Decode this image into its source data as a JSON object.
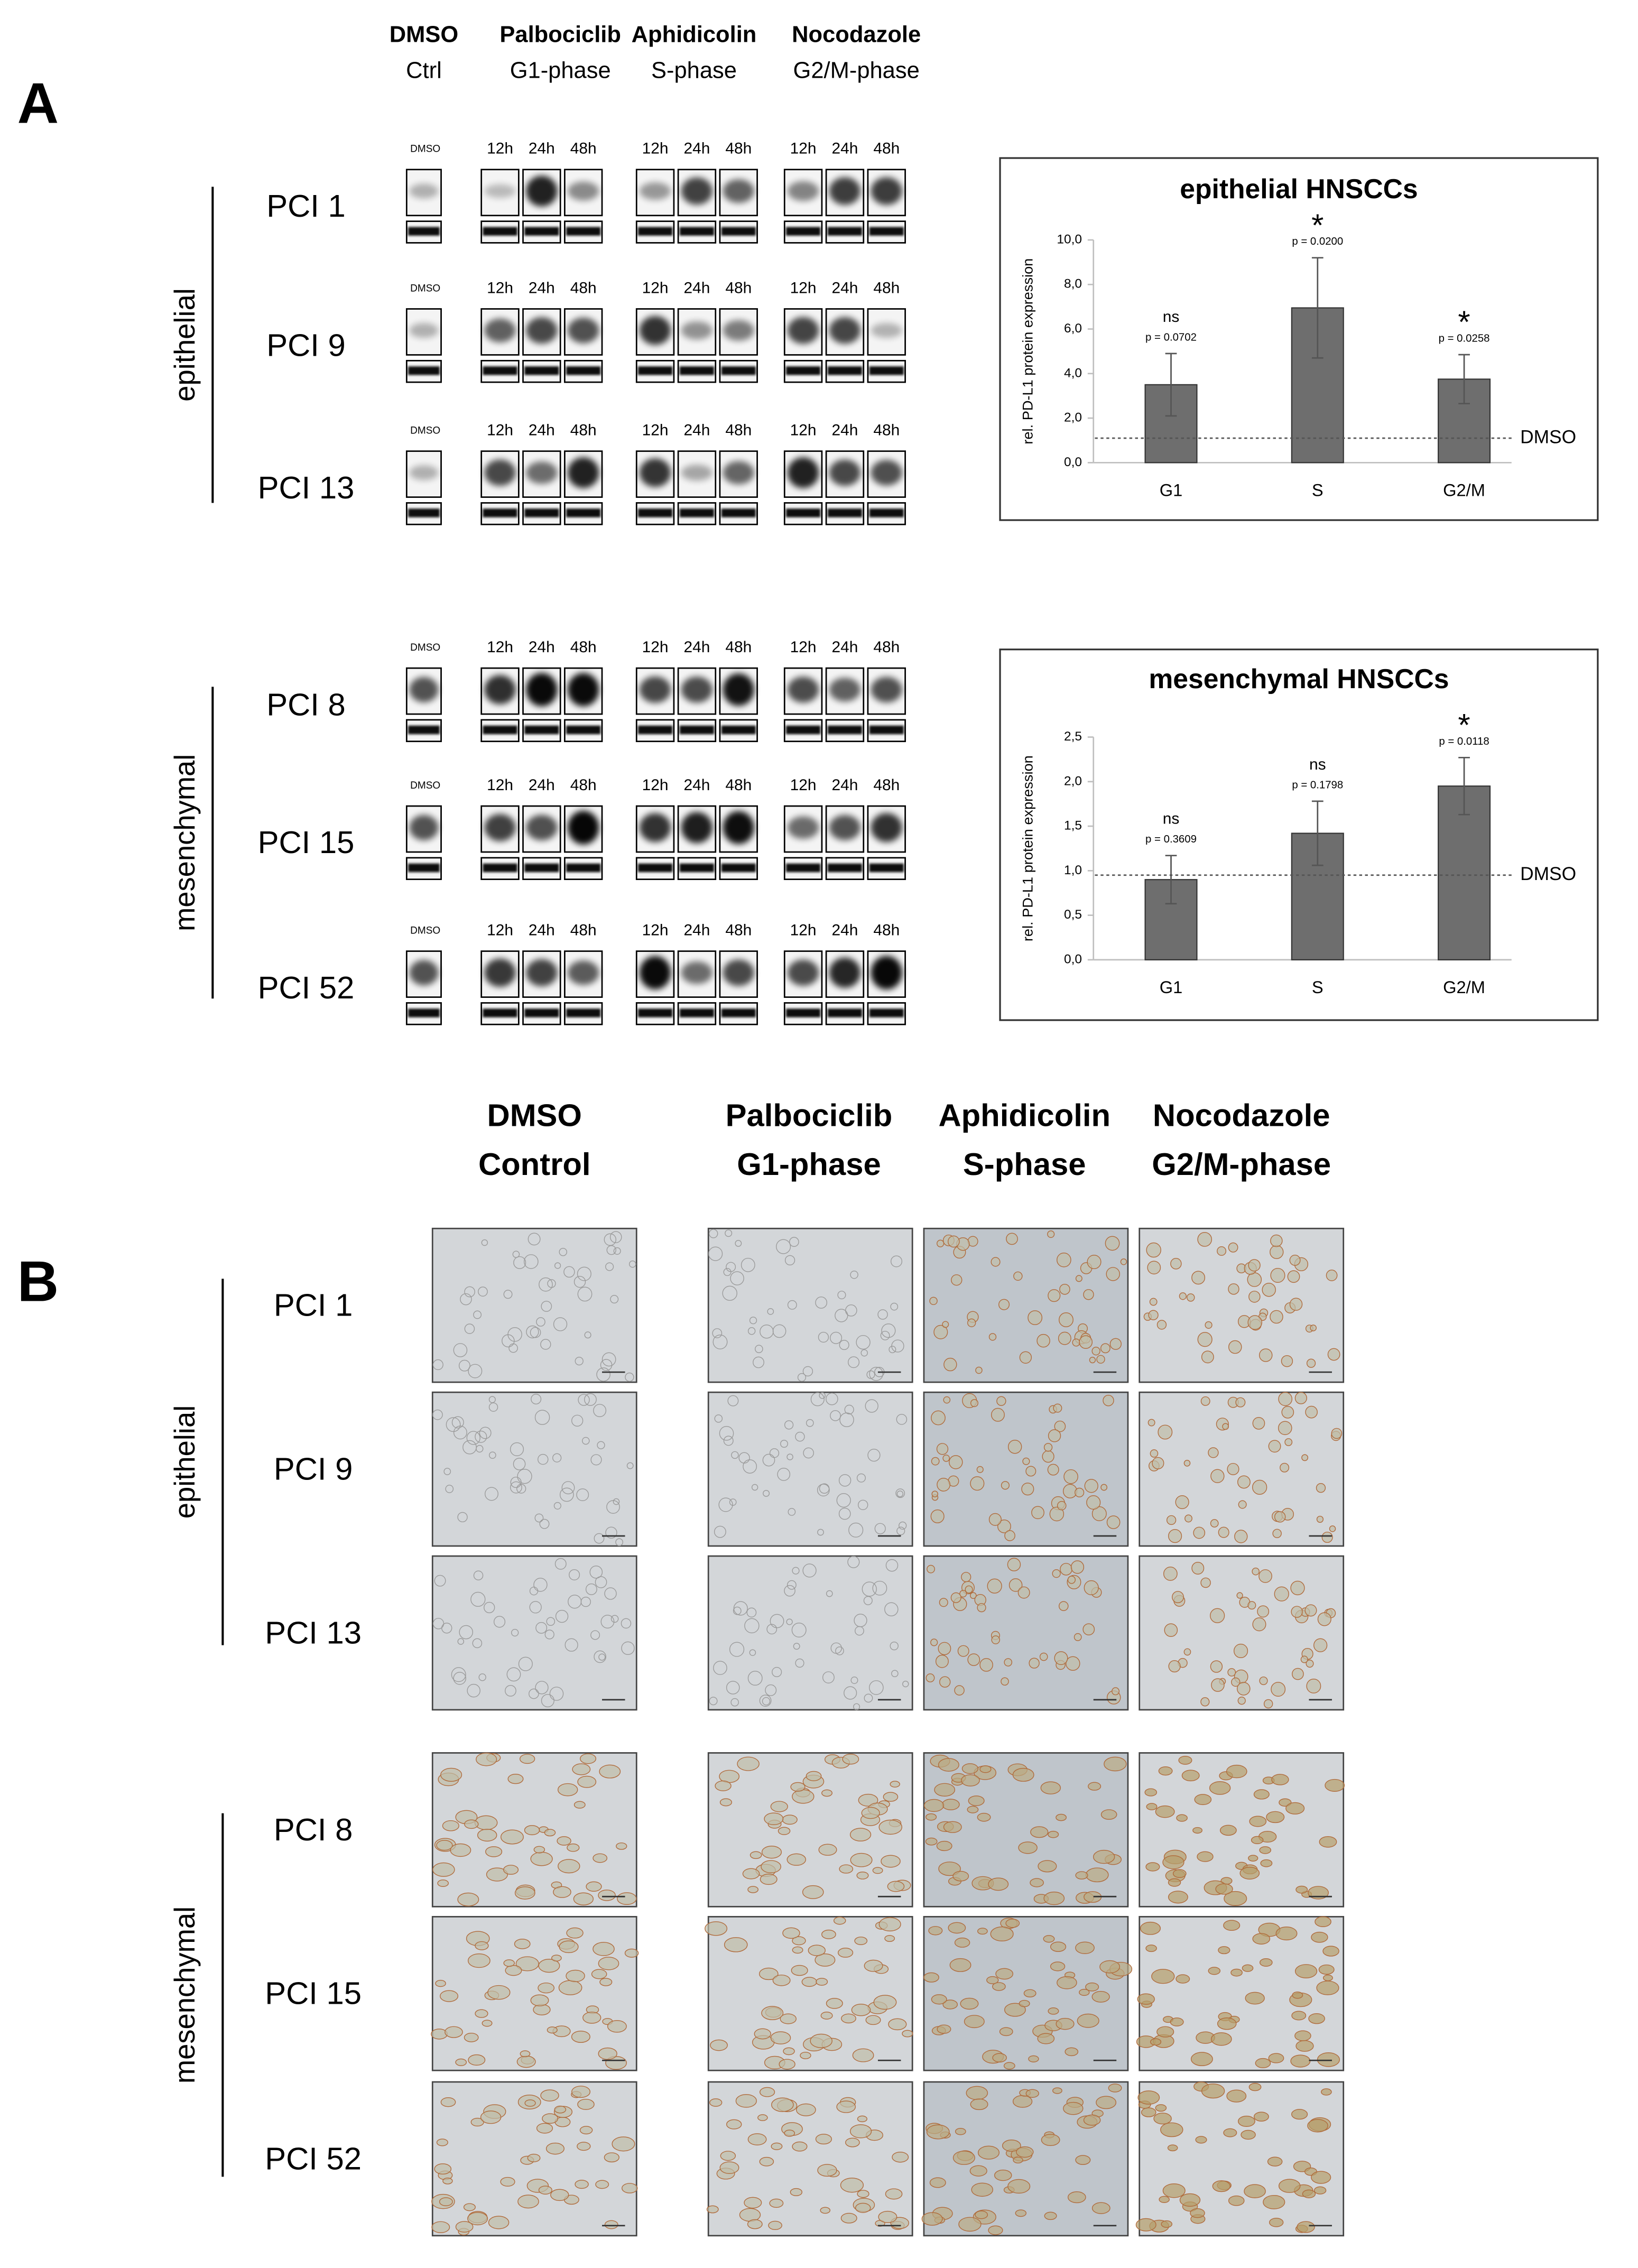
{
  "panel_a": {
    "label": "A",
    "treatments": [
      {
        "name": "DMSO",
        "phase": "Ctrl"
      },
      {
        "name": "Palbociclib",
        "phase": "G1-phase"
      },
      {
        "name": "Aphidicolin",
        "phase": "S-phase"
      },
      {
        "name": "Nocodazole",
        "phase": "G2/M-phase"
      }
    ],
    "control_lane": "DMSO",
    "time_points": [
      "12h",
      "24h",
      "48h"
    ],
    "groups": [
      {
        "name": "epithelial",
        "cell_lines": [
          "PCI 1",
          "PCI 9",
          "PCI 13"
        ]
      },
      {
        "name": "mesenchymal",
        "cell_lines": [
          "PCI 8",
          "PCI 15",
          "PCI 52"
        ]
      }
    ]
  },
  "chart_data": [
    {
      "type": "bar",
      "title": "epithelial HNSCCs",
      "y_label": "rel. PD-L1 protein expression",
      "categories": [
        "G1",
        "S",
        "G2/M"
      ],
      "series": [
        {
          "color": "#6e6e6e",
          "values": [
            3.5,
            6.95,
            3.75
          ],
          "errors": [
            1.4,
            2.25,
            1.1
          ]
        }
      ],
      "ylim": [
        0,
        10
      ],
      "yticks": [
        {
          "value": 0,
          "label": "0,0"
        },
        {
          "value": 2,
          "label": "2,0"
        },
        {
          "value": 4,
          "label": "4,0"
        },
        {
          "value": 6,
          "label": "6,0"
        },
        {
          "value": 8,
          "label": "8,0"
        },
        {
          "value": 10,
          "label": "10,0"
        }
      ],
      "reference_line": {
        "label": "DMSO",
        "value": 1.1
      },
      "significance": [
        "ns",
        "*",
        "*"
      ],
      "p_values": [
        "p = 0.0702",
        "p = 0.0200",
        "p = 0.0258"
      ]
    },
    {
      "type": "bar",
      "title": "mesenchymal HNSCCs",
      "y_label": "rel. PD-L1 protein expression",
      "categories": [
        "G1",
        "S",
        "G2/M"
      ],
      "series": [
        {
          "color": "#6e6e6e",
          "values": [
            0.9,
            1.42,
            1.95
          ],
          "errors": [
            0.27,
            0.36,
            0.32
          ]
        }
      ],
      "ylim": [
        0,
        2.5
      ],
      "yticks": [
        {
          "value": 0,
          "label": "0,0"
        },
        {
          "value": 0.5,
          "label": "0,5"
        },
        {
          "value": 1,
          "label": "1,0"
        },
        {
          "value": 1.5,
          "label": "1,5"
        },
        {
          "value": 2,
          "label": "2,0"
        },
        {
          "value": 2.5,
          "label": "2,5"
        }
      ],
      "reference_line": {
        "label": "DMSO",
        "value": 0.95
      },
      "significance": [
        "ns",
        "ns",
        "*"
      ],
      "p_values": [
        "p = 0.3609",
        "p = 0.1798",
        "p = 0.0118"
      ]
    }
  ],
  "panel_b": {
    "label": "B",
    "treatments": [
      {
        "name": "DMSO",
        "phase": "Control"
      },
      {
        "name": "Palbociclib",
        "phase": "G1-phase"
      },
      {
        "name": "Aphidicolin",
        "phase": "S-phase"
      },
      {
        "name": "Nocodazole",
        "phase": "G2/M-phase"
      }
    ],
    "groups": [
      {
        "name": "epithelial",
        "cell_lines": [
          "PCI 1",
          "PCI 9",
          "PCI 13"
        ]
      },
      {
        "name": "mesenchymal",
        "cell_lines": [
          "PCI 8",
          "PCI 15",
          "PCI 52"
        ]
      }
    ]
  }
}
